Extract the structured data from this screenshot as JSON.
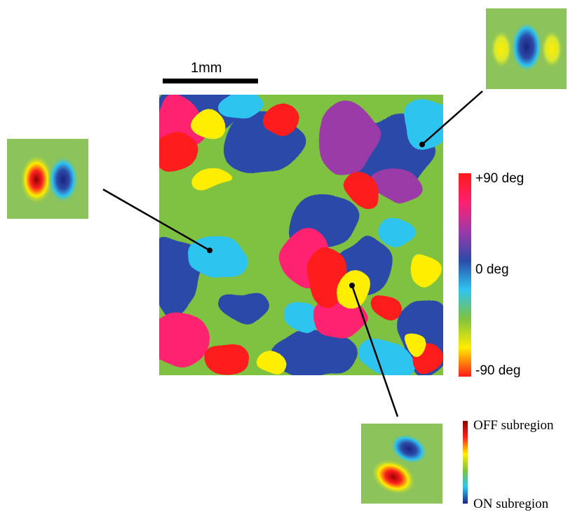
{
  "scale_bar": {
    "label": "1mm"
  },
  "orientation_colorbar": {
    "max_label": "+90 deg",
    "mid_label": "0 deg",
    "min_label": "-90 deg",
    "colors": [
      "#ff1a1a",
      "#ffee00",
      "#7fc241",
      "#2ec4f0",
      "#2c4aa8",
      "#9b3aa8",
      "#ff2070",
      "#ff1a1a"
    ]
  },
  "subregion_colorbar": {
    "top_label": "OFF subregion",
    "bottom_label": "ON subregion",
    "colors": [
      "#8b0000",
      "#ff2020",
      "#ffee00",
      "#7fc241",
      "#2ec4f0",
      "#1a237e"
    ]
  },
  "receptive_fields": [
    {
      "name": "left",
      "pattern": "vertical pair: OFF (red) left, ON (blue) right"
    },
    {
      "name": "top-right",
      "pattern": "vertical triplet: ON (blue) center, OFF (yellow) flanks"
    },
    {
      "name": "bottom",
      "pattern": "diagonal pair: ON (blue) upper-right, OFF (red) lower-left"
    }
  ]
}
